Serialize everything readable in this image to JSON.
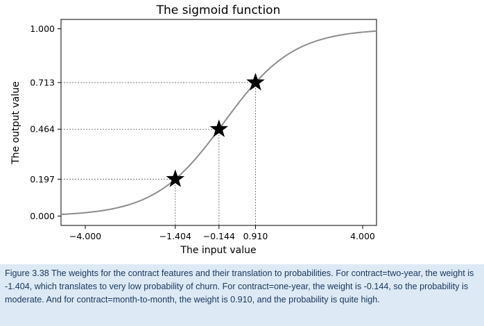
{
  "chart_data": {
    "type": "line",
    "title": "The sigmoid function",
    "xlabel": "The input value",
    "ylabel": "The output value",
    "xlim": [
      -4.7,
      4.4
    ],
    "ylim": [
      -0.05,
      1.05
    ],
    "grid": false,
    "x_ticks": [
      {
        "value": -4.0,
        "label": "−4.000"
      },
      {
        "value": -1.404,
        "label": "−1.404"
      },
      {
        "value": -0.144,
        "label": "−0.144"
      },
      {
        "value": 0.91,
        "label": "0.910"
      },
      {
        "value": 4.0,
        "label": "4.000"
      }
    ],
    "y_ticks": [
      {
        "value": 0.0,
        "label": "0.000"
      },
      {
        "value": 0.197,
        "label": "0.197"
      },
      {
        "value": 0.464,
        "label": "0.464"
      },
      {
        "value": 0.713,
        "label": "0.713"
      },
      {
        "value": 1.0,
        "label": "1.000"
      }
    ],
    "series": [
      {
        "function": "sigmoid",
        "x_range": [
          -4.7,
          4.4
        ],
        "color": "#8c8c8c"
      }
    ],
    "points": [
      {
        "x": -1.404,
        "y": 0.197,
        "marker": "star"
      },
      {
        "x": -0.144,
        "y": 0.464,
        "marker": "star"
      },
      {
        "x": 0.91,
        "y": 0.713,
        "marker": "star"
      }
    ]
  },
  "caption": "Figure 3.38 The weights for the contract features and their translation to probabilities. For contract=two-year, the weight is -1.404, which translates to very low probability of churn. For contract=one-year, the weight is -0.144, so the probability is moderate. And for contract=month-to-month, the weight is 0.910, and the probability is quite high."
}
